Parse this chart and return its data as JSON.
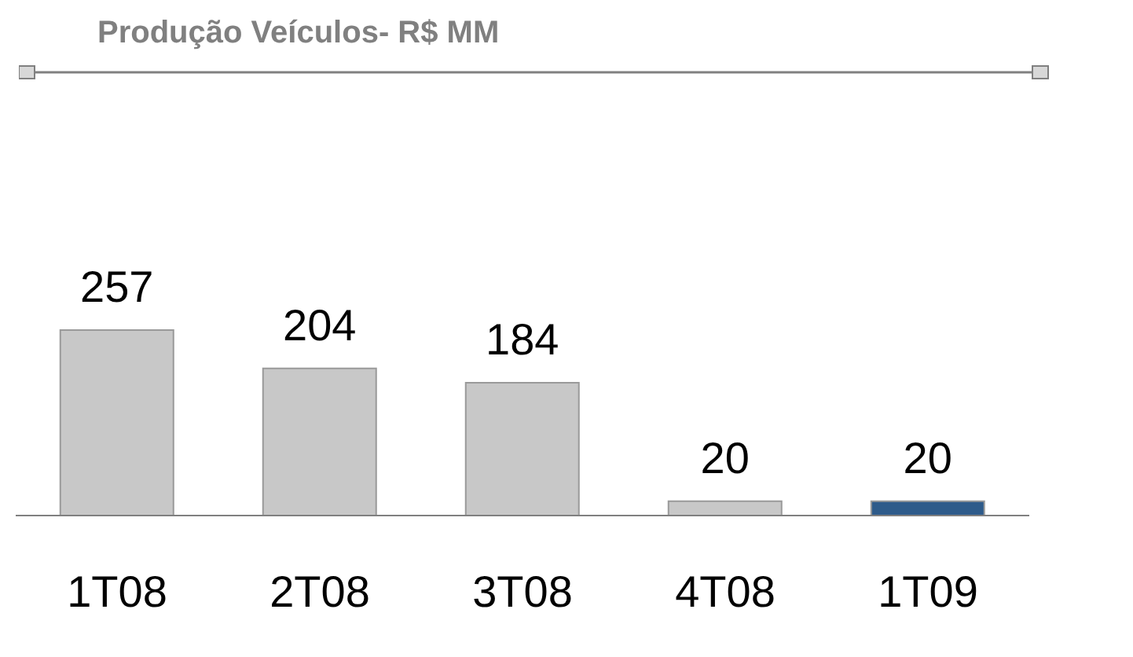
{
  "chart_data": {
    "type": "bar",
    "title": "Produção Veículos- R$ MM",
    "categories": [
      "1T08",
      "2T08",
      "3T08",
      "4T08",
      "1T09"
    ],
    "values": [
      257,
      204,
      184,
      20,
      20
    ],
    "colors": [
      "#c8c8c8",
      "#c8c8c8",
      "#c8c8c8",
      "#c8c8c8",
      "#2e5b8a"
    ],
    "data_labels": true
  }
}
